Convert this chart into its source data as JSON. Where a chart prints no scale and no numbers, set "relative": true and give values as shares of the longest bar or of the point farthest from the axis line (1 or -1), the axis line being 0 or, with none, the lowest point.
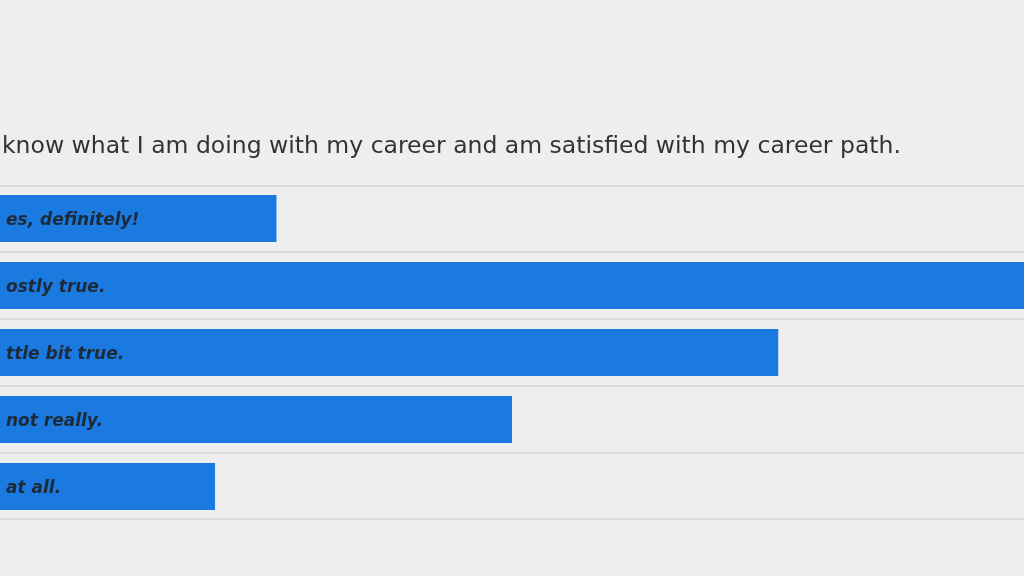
{
  "chart_data": {
    "type": "bar",
    "orientation": "horizontal",
    "relative": true,
    "title": "know what I am doing with my career and am satisfied with my career path.",
    "categories": [
      "es, definitely!",
      "ostly true.",
      "ttle bit true.",
      "not really.",
      "at all."
    ],
    "values": [
      0.27,
      1,
      0.76,
      0.5,
      0.21
    ],
    "color": "#1b7ae0",
    "grid": "y"
  }
}
